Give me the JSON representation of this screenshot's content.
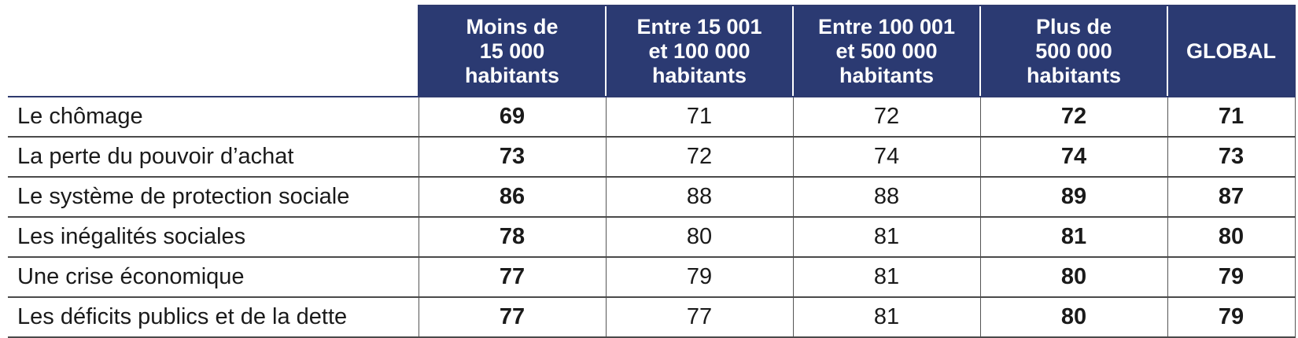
{
  "table": {
    "columns": [
      "Moins de\n15 000\nhabitants",
      "Entre 15 001\net 100 000\nhabitants",
      "Entre 100 001\net 500 000\nhabitants",
      "Plus de\n500 000\nhabitants",
      "GLOBAL"
    ],
    "bold_columns": [
      0,
      3,
      4
    ],
    "header_bg": "#2b3a72",
    "rows": [
      {
        "label": "Le chômage",
        "values": [
          "69",
          "71",
          "72",
          "72",
          "71"
        ]
      },
      {
        "label": "La perte du pouvoir d’achat",
        "values": [
          "73",
          "72",
          "74",
          "74",
          "73"
        ]
      },
      {
        "label": "Le système de protection sociale",
        "values": [
          "86",
          "88",
          "88",
          "89",
          "87"
        ]
      },
      {
        "label": "Les inégalités sociales",
        "values": [
          "78",
          "80",
          "81",
          "81",
          "80"
        ]
      },
      {
        "label": "Une crise économique",
        "values": [
          "77",
          "79",
          "81",
          "80",
          "79"
        ]
      },
      {
        "label": "Les déficits publics et de la dette",
        "values": [
          "77",
          "77",
          "81",
          "80",
          "79"
        ]
      }
    ]
  }
}
